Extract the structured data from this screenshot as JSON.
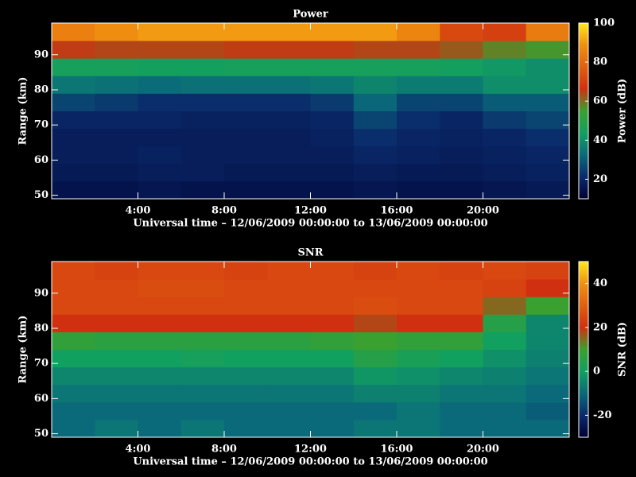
{
  "chart_data": [
    {
      "type": "heatmap",
      "title": "Power",
      "xlabel": "Universal time – 12/06/2009 00:00:00 to 13/06/2009 00:00:00",
      "ylabel": "Range (km)",
      "xlim": [
        0,
        24
      ],
      "ylim": [
        49,
        99
      ],
      "xticks": [
        {
          "value": 4,
          "label": "4:00"
        },
        {
          "value": 8,
          "label": "8:00"
        },
        {
          "value": 12,
          "label": "12:00"
        },
        {
          "value": 16,
          "label": "16:00"
        },
        {
          "value": 20,
          "label": "20:00"
        }
      ],
      "yticks": [
        50,
        60,
        70,
        80,
        90
      ],
      "x": [
        0,
        2,
        4,
        6,
        8,
        10,
        12,
        14,
        16,
        18,
        20,
        22,
        24
      ],
      "y": [
        49,
        54,
        59,
        64,
        69,
        74,
        79,
        84,
        89,
        94,
        99
      ],
      "values": [
        [
          15,
          15,
          16,
          15,
          15,
          15,
          15,
          16,
          15,
          15,
          16,
          17
        ],
        [
          17,
          17,
          18,
          18,
          17,
          17,
          17,
          18,
          17,
          17,
          18,
          19
        ],
        [
          18,
          18,
          19,
          18,
          18,
          18,
          18,
          20,
          19,
          18,
          19,
          20
        ],
        [
          18,
          18,
          18,
          18,
          18,
          18,
          19,
          22,
          20,
          19,
          20,
          22
        ],
        [
          20,
          20,
          20,
          19,
          19,
          19,
          20,
          26,
          22,
          20,
          24,
          26
        ],
        [
          26,
          24,
          22,
          22,
          22,
          22,
          24,
          32,
          26,
          26,
          30,
          30
        ],
        [
          35,
          34,
          33,
          34,
          34,
          34,
          35,
          38,
          36,
          36,
          40,
          40
        ],
        [
          45,
          45,
          44,
          44,
          45,
          45,
          45,
          45,
          45,
          44,
          42,
          40
        ],
        [
          65,
          64,
          64,
          64,
          65,
          65,
          65,
          64,
          64,
          62,
          58,
          56
        ],
        [
          85,
          88,
          90,
          90,
          90,
          90,
          90,
          90,
          86,
          72,
          70,
          84
        ]
      ],
      "colors": [
        "#000033",
        "#0a2a6a",
        "#0a6a7a",
        "#12a060",
        "#3aa030",
        "#d03010",
        "#e06010",
        "#f09010",
        "#ffe81a"
      ],
      "colorbar": {
        "label": "Power (dB)",
        "lim": [
          10,
          100
        ],
        "ticks": [
          20,
          40,
          60,
          80,
          100
        ]
      }
    },
    {
      "type": "heatmap",
      "title": "SNR",
      "xlabel": "Universal time – 12/06/2009 00:00:00 to 13/06/2009 00:00:00",
      "ylabel": "Range (km)",
      "xlim": [
        0,
        24
      ],
      "ylim": [
        49,
        99
      ],
      "xticks": [
        {
          "value": 4,
          "label": "4:00"
        },
        {
          "value": 8,
          "label": "8:00"
        },
        {
          "value": 12,
          "label": "12:00"
        },
        {
          "value": 16,
          "label": "16:00"
        },
        {
          "value": 20,
          "label": "20:00"
        }
      ],
      "yticks": [
        50,
        60,
        70,
        80,
        90
      ],
      "x": [
        0,
        2,
        4,
        6,
        8,
        10,
        12,
        14,
        16,
        18,
        20,
        22,
        24
      ],
      "y": [
        49,
        54,
        59,
        64,
        69,
        74,
        79,
        84,
        89,
        94,
        99
      ],
      "values": [
        [
          -10,
          -8,
          -10,
          -8,
          -10,
          -10,
          -10,
          -8,
          -8,
          -10,
          -10,
          -10
        ],
        [
          -10,
          -10,
          -10,
          -10,
          -10,
          -10,
          -10,
          -10,
          -8,
          -10,
          -10,
          -12
        ],
        [
          -8,
          -8,
          -8,
          -8,
          -8,
          -8,
          -8,
          -6,
          -6,
          -8,
          -8,
          -10
        ],
        [
          -5,
          -5,
          -5,
          -5,
          -5,
          -5,
          -5,
          -2,
          -3,
          -5,
          -6,
          -8
        ],
        [
          0,
          0,
          0,
          1,
          0,
          0,
          0,
          5,
          2,
          0,
          -3,
          -6
        ],
        [
          8,
          6,
          6,
          6,
          6,
          6,
          8,
          10,
          8,
          8,
          0,
          -5
        ],
        [
          20,
          20,
          20,
          20,
          20,
          20,
          20,
          18,
          20,
          20,
          5,
          -5
        ],
        [
          25,
          25,
          25,
          25,
          25,
          25,
          25,
          26,
          25,
          25,
          15,
          10
        ],
        [
          25,
          25,
          26,
          26,
          25,
          25,
          25,
          25,
          25,
          25,
          24,
          20
        ],
        [
          25,
          24,
          25,
          25,
          24,
          25,
          25,
          24,
          25,
          24,
          25,
          24
        ]
      ],
      "colors": [
        "#000033",
        "#0a2a6a",
        "#0a6a7a",
        "#12a060",
        "#3aa030",
        "#d03010",
        "#e06010",
        "#f09010",
        "#ffe81a"
      ],
      "colorbar": {
        "label": "SNR (dB)",
        "lim": [
          -30,
          50
        ],
        "ticks": [
          -20,
          0,
          20,
          40
        ]
      }
    }
  ]
}
